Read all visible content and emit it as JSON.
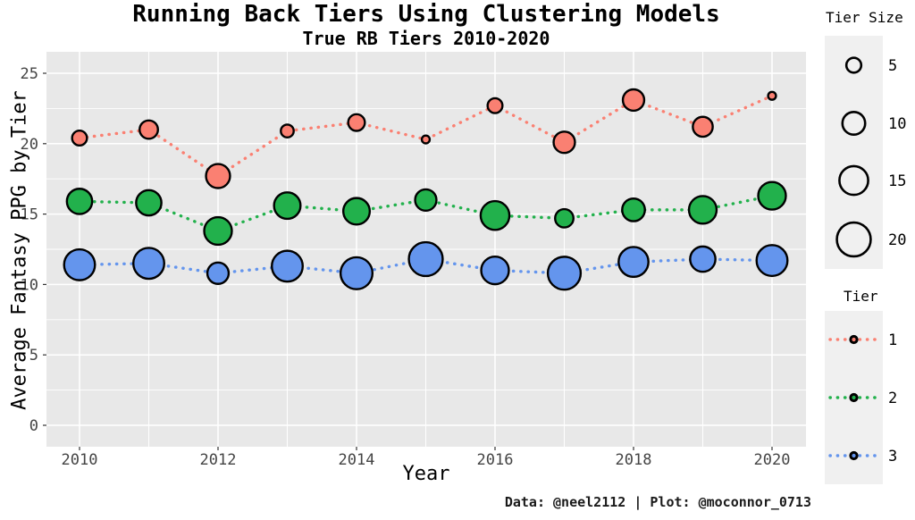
{
  "title": "Running Back Tiers Using Clustering Models",
  "subtitle": "True RB Tiers 2010-2020",
  "caption": "Data: @neel2112 | Plot: @moconnor_0713",
  "colors": {
    "panel_bg": "#e8e8e8",
    "gridline": "#ffffff",
    "legend_key_bg": "#f0f0f0",
    "tick_label": "#444444",
    "tier1": "#fa8072",
    "tier2": "#22b14c",
    "tier3": "#6495ed",
    "point_outline": "#000000"
  },
  "chart_data": {
    "type": "scatter",
    "title": "Running Back Tiers Using Clustering Models",
    "subtitle": "True RB Tiers 2010-2020",
    "xlabel": "Year",
    "ylabel": "Average Fantasy PPG by Tier",
    "x": [
      2010,
      2011,
      2012,
      2013,
      2014,
      2015,
      2016,
      2017,
      2018,
      2019,
      2020
    ],
    "x_ticks": [
      2010,
      2012,
      2014,
      2016,
      2018,
      2020
    ],
    "y_ticks": [
      0,
      5,
      10,
      15,
      20,
      25
    ],
    "y_minor_ticks": [
      2.5,
      7.5,
      12.5,
      17.5,
      22.5
    ],
    "xlim": [
      2009.5,
      2020.5
    ],
    "ylim": [
      -1.5,
      26.5
    ],
    "grid": "on",
    "series": [
      {
        "name": "1",
        "color": "#fa8072",
        "linestyle": "dotted",
        "ppg": [
          20.4,
          21.0,
          17.7,
          20.9,
          21.5,
          20.3,
          22.7,
          20.1,
          23.1,
          21.2,
          23.4
        ],
        "tier_size": [
          5,
          7,
          11,
          4,
          6,
          2,
          5,
          9,
          9,
          8,
          2
        ]
      },
      {
        "name": "2",
        "color": "#22b14c",
        "linestyle": "dotted",
        "ppg": [
          15.9,
          15.8,
          13.8,
          15.6,
          15.2,
          16.0,
          14.9,
          14.7,
          15.3,
          15.3,
          16.3
        ],
        "tier_size": [
          12,
          12,
          14,
          13,
          13,
          9,
          15,
          7,
          10,
          14,
          14
        ]
      },
      {
        "name": "3",
        "color": "#6495ed",
        "linestyle": "dotted",
        "ppg": [
          11.4,
          11.5,
          10.8,
          11.3,
          10.8,
          11.8,
          11.0,
          10.8,
          11.6,
          11.8,
          11.7
        ],
        "tier_size": [
          17,
          17,
          9,
          17,
          18,
          20,
          14,
          19,
          16,
          12,
          17
        ]
      }
    ],
    "size_legend": {
      "title": "Tier Size",
      "values": [
        5,
        10,
        15,
        20
      ]
    },
    "tier_legend": {
      "title": "Tier",
      "entries": [
        {
          "label": "1",
          "color": "#fa8072"
        },
        {
          "label": "2",
          "color": "#22b14c"
        },
        {
          "label": "3",
          "color": "#6495ed"
        }
      ]
    },
    "legend_position": "right"
  }
}
